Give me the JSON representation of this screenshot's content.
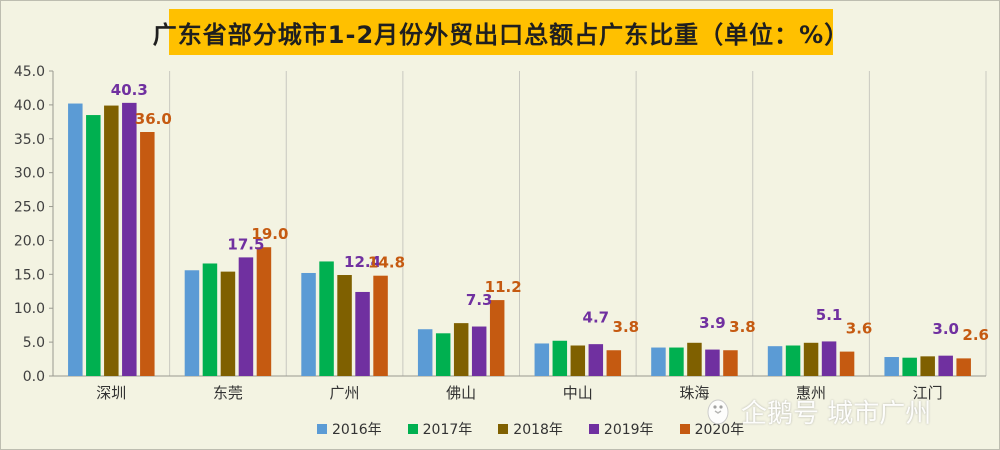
{
  "title": "广东省部分城市1-2月份外贸出口总额占广东比重（单位：%）",
  "watermark": "企鹅号 城市广州",
  "chart_data": {
    "type": "bar",
    "title": "广东省部分城市1-2月份外贸出口总额占广东比重（单位：%）",
    "xlabel": "",
    "ylabel": "",
    "ylim": [
      0,
      45
    ],
    "yticks": [
      0,
      5,
      10,
      15,
      20,
      25,
      30,
      35,
      40,
      45
    ],
    "ytick_labels": [
      "0.0",
      "5.0",
      "10.0",
      "15.0",
      "20.0",
      "25.0",
      "30.0",
      "35.0",
      "40.0",
      "45.0"
    ],
    "grid": "vertical category dividers",
    "legend_position": "bottom",
    "categories": [
      "深圳",
      "东莞",
      "广州",
      "佛山",
      "中山",
      "珠海",
      "惠州",
      "江门"
    ],
    "series": [
      {
        "name": "2016年",
        "color": "#5b9bd5",
        "values": [
          40.2,
          15.6,
          15.2,
          6.9,
          4.8,
          4.2,
          4.4,
          2.8
        ]
      },
      {
        "name": "2017年",
        "color": "#00b050",
        "values": [
          38.5,
          16.6,
          16.9,
          6.3,
          5.2,
          4.2,
          4.5,
          2.7
        ]
      },
      {
        "name": "2018年",
        "color": "#7f6000",
        "values": [
          39.9,
          15.4,
          14.9,
          7.8,
          4.5,
          4.9,
          4.9,
          2.9
        ]
      },
      {
        "name": "2019年",
        "color": "#7030a0",
        "values": [
          40.3,
          17.5,
          12.4,
          7.3,
          4.7,
          3.9,
          5.1,
          3.0
        ]
      },
      {
        "name": "2020年",
        "color": "#c55a11",
        "values": [
          36.0,
          19.0,
          14.8,
          11.2,
          3.8,
          3.8,
          3.6,
          2.6
        ]
      }
    ],
    "data_labels": [
      {
        "series": "2019年",
        "values": [
          "40.3",
          "17.5",
          "12.4",
          "7.3",
          "4.7",
          "3.9",
          "5.1",
          "3.0"
        ],
        "color": "#7030a0"
      },
      {
        "series": "2020年",
        "values": [
          "36.0",
          "19.0",
          "14.8",
          "11.2",
          "3.8",
          "3.8",
          "3.6",
          "2.6"
        ],
        "color": "#c55a11"
      }
    ]
  }
}
